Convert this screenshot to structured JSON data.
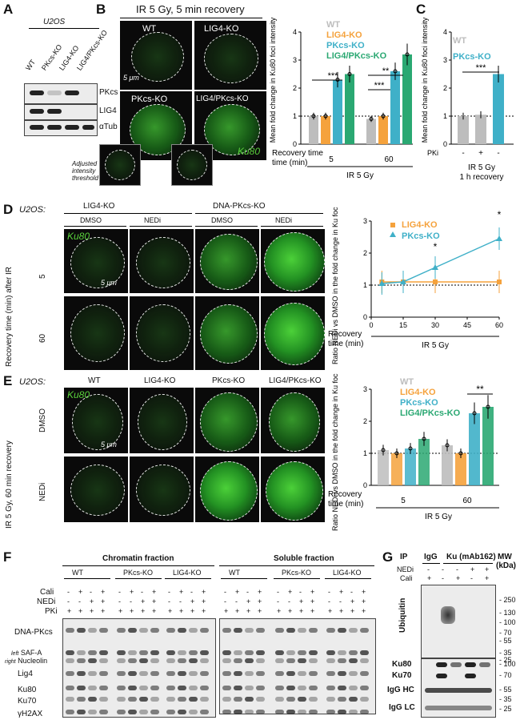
{
  "panelA": {
    "letter": "A",
    "cell": "U2OS",
    "lanes": [
      "WT",
      "PKcs-KO",
      "LIG4-KO",
      "LIG4/PKcs-KO"
    ],
    "rows": [
      "PKcs",
      "LIG4",
      "αTub"
    ]
  },
  "panelB": {
    "letter": "B",
    "title": "IR 5 Gy, 5 min recovery",
    "images": [
      "WT",
      "LIG4-KO",
      "PKcs-KO",
      "LIG4/PKcs-KO"
    ],
    "scale": "5 μm",
    "stain": "Ku80",
    "adjusted": "Adjusted intensity threshold"
  },
  "chartB": {
    "ylabel": "Mean fold change in Ku80 foci intensity",
    "xcaption": "Recovery time (min)",
    "xgroup": "IR 5 Gy",
    "groups": [
      "5",
      "60"
    ],
    "legend": [
      "WT",
      "LIG4-KO",
      "PKcs-KO",
      "LIG4/PKcs-KO"
    ],
    "sig": [
      "***",
      "***",
      "**"
    ]
  },
  "panelC": {
    "letter": "C",
    "ylabel": "Mean fold change in Ku80 foci intensity",
    "legend": [
      "WT",
      "PKcs-KO"
    ],
    "pki_label": "PKi",
    "pki": [
      "-",
      "+",
      "-"
    ],
    "caption1": "IR 5  Gy",
    "caption2": "1 h recovery",
    "sig": "***"
  },
  "panelD": {
    "letter": "D",
    "cell": "U2OS:",
    "groups": [
      "LIG4-KO",
      "DNA-PKcs-KO"
    ],
    "treat": [
      "DMSO",
      "NEDi",
      "DMSO",
      "NEDi"
    ],
    "rowlabel": "Recovery time (min) after IR",
    "rows": [
      "5",
      "60"
    ],
    "stain": "Ku80",
    "scale": "5 μm"
  },
  "chartD": {
    "ylabel": "Ratio NEDi vs DMSO in the fold change in Ku foci intensity",
    "xcaption": "Recovery time (min)",
    "xgroup": "IR 5 Gy",
    "legend": [
      "LIG4-KO",
      "PKcs-KO"
    ],
    "sig": [
      "*",
      "*"
    ]
  },
  "panelE": {
    "letter": "E",
    "cell": "U2OS:",
    "cols": [
      "WT",
      "LIG4-KO",
      "PKcs-KO",
      "LIG4/PKcs-KO"
    ],
    "rowlabel": "IR 5 Gy, 60 min recovery",
    "rows": [
      "DMSO",
      "NEDi"
    ],
    "stain": "Ku80",
    "scale": "5 μm"
  },
  "chartE": {
    "ylabel": "Ratio NEDi vs DMSO in the fold change in Ku foci intensity",
    "xcaption": "Recovery time (min)",
    "xgroup": "IR 5 Gy",
    "groups": [
      "5",
      "60"
    ],
    "legend": [
      "WT",
      "LIG4-KO",
      "PKcs-KO",
      "LIG4/PKcs-KO"
    ],
    "sig": "**"
  },
  "panelF": {
    "letter": "F",
    "chromatin": "Chromatin fraction",
    "soluble": "Soluble fraction",
    "groups": [
      "WT",
      "PKcs-KO",
      "LIG4-KO"
    ],
    "treat_rows": [
      "Cali",
      "NEDi",
      "PKi"
    ],
    "cali": [
      "-",
      "+",
      "-",
      "+"
    ],
    "nedi": [
      "-",
      "-",
      "+",
      "+"
    ],
    "pki": [
      "+",
      "+",
      "+",
      "+"
    ],
    "rows": [
      "DNA-PKcs",
      "SAF-A",
      "Nucleolin",
      "Lig4",
      "Ku80",
      "Ku70",
      "γH2AX"
    ],
    "left": "left",
    "right": "right"
  },
  "panelG": {
    "letter": "G",
    "ip": "IP",
    "igg": "IgG",
    "ku": "Ku (mAb162)",
    "mw": "MW",
    "kda": "(kDa)",
    "nedi_label": "NEDi",
    "cali_label": "Cali",
    "nedi": [
      "-",
      "-",
      "-",
      "+",
      "+"
    ],
    "cali": [
      "+",
      "-",
      "+",
      "-",
      "+"
    ],
    "blot": "Ubiquitin",
    "markers": [
      "250",
      "130",
      "100",
      "70",
      "55",
      "35",
      "25"
    ],
    "rows": [
      "Ku80",
      "Ku70",
      "IgG HC",
      "IgG LC"
    ],
    "row_mw": [
      "100",
      "70",
      "55",
      "35",
      "25"
    ]
  },
  "chart_data": [
    {
      "type": "bar",
      "title": "",
      "ylabel": "Mean fold change in Ku80 foci intensity",
      "categories": [
        "5",
        "60"
      ],
      "ylim": [
        0,
        4
      ],
      "series": [
        {
          "name": "WT",
          "values": [
            1.0,
            0.9
          ]
        },
        {
          "name": "LIG4-KO",
          "values": [
            1.0,
            1.0
          ]
        },
        {
          "name": "PKcs-KO",
          "values": [
            2.3,
            2.6
          ]
        },
        {
          "name": "LIG4/PKcs-KO",
          "values": [
            2.5,
            3.2
          ]
        }
      ],
      "colors": [
        "#bdbdbd",
        "#f5a23c",
        "#3fb0c8",
        "#2aa872"
      ]
    },
    {
      "type": "bar",
      "title": "",
      "ylabel": "Mean fold change in Ku80 foci intensity",
      "categories": [
        "-",
        "+",
        "-"
      ],
      "ylim": [
        0,
        4
      ],
      "series": [
        {
          "name": "values",
          "values": [
            1.0,
            1.05,
            2.5
          ]
        }
      ],
      "colors": [
        "#bdbdbd",
        "#bdbdbd",
        "#3fb0c8"
      ]
    },
    {
      "type": "line",
      "title": "",
      "ylabel": "Ratio NEDi vs DMSO in the fold change in Ku foci intensity",
      "x": [
        5,
        15,
        30,
        60
      ],
      "ylim": [
        0,
        3
      ],
      "xlim": [
        0,
        60
      ],
      "series": [
        {
          "name": "LIG4-KO",
          "values": [
            1.1,
            1.1,
            1.1,
            1.1
          ]
        },
        {
          "name": "PKcs-KO",
          "values": [
            1.05,
            1.1,
            1.55,
            2.45
          ]
        }
      ],
      "colors": [
        "#f5a23c",
        "#3fb0c8"
      ]
    },
    {
      "type": "bar",
      "title": "",
      "ylabel": "Ratio NEDi vs DMSO in the fold change in Ku foci intensity",
      "categories": [
        "5",
        "60"
      ],
      "ylim": [
        0,
        3
      ],
      "series": [
        {
          "name": "WT",
          "values": [
            1.1,
            1.25
          ]
        },
        {
          "name": "LIG4-KO",
          "values": [
            1.0,
            1.0
          ]
        },
        {
          "name": "PKcs-KO",
          "values": [
            1.15,
            2.25
          ]
        },
        {
          "name": "LIG4/PKcs-KO",
          "values": [
            1.45,
            2.45
          ]
        }
      ],
      "colors": [
        "#bdbdbd",
        "#f5a23c",
        "#3fb0c8",
        "#2aa872"
      ]
    }
  ]
}
